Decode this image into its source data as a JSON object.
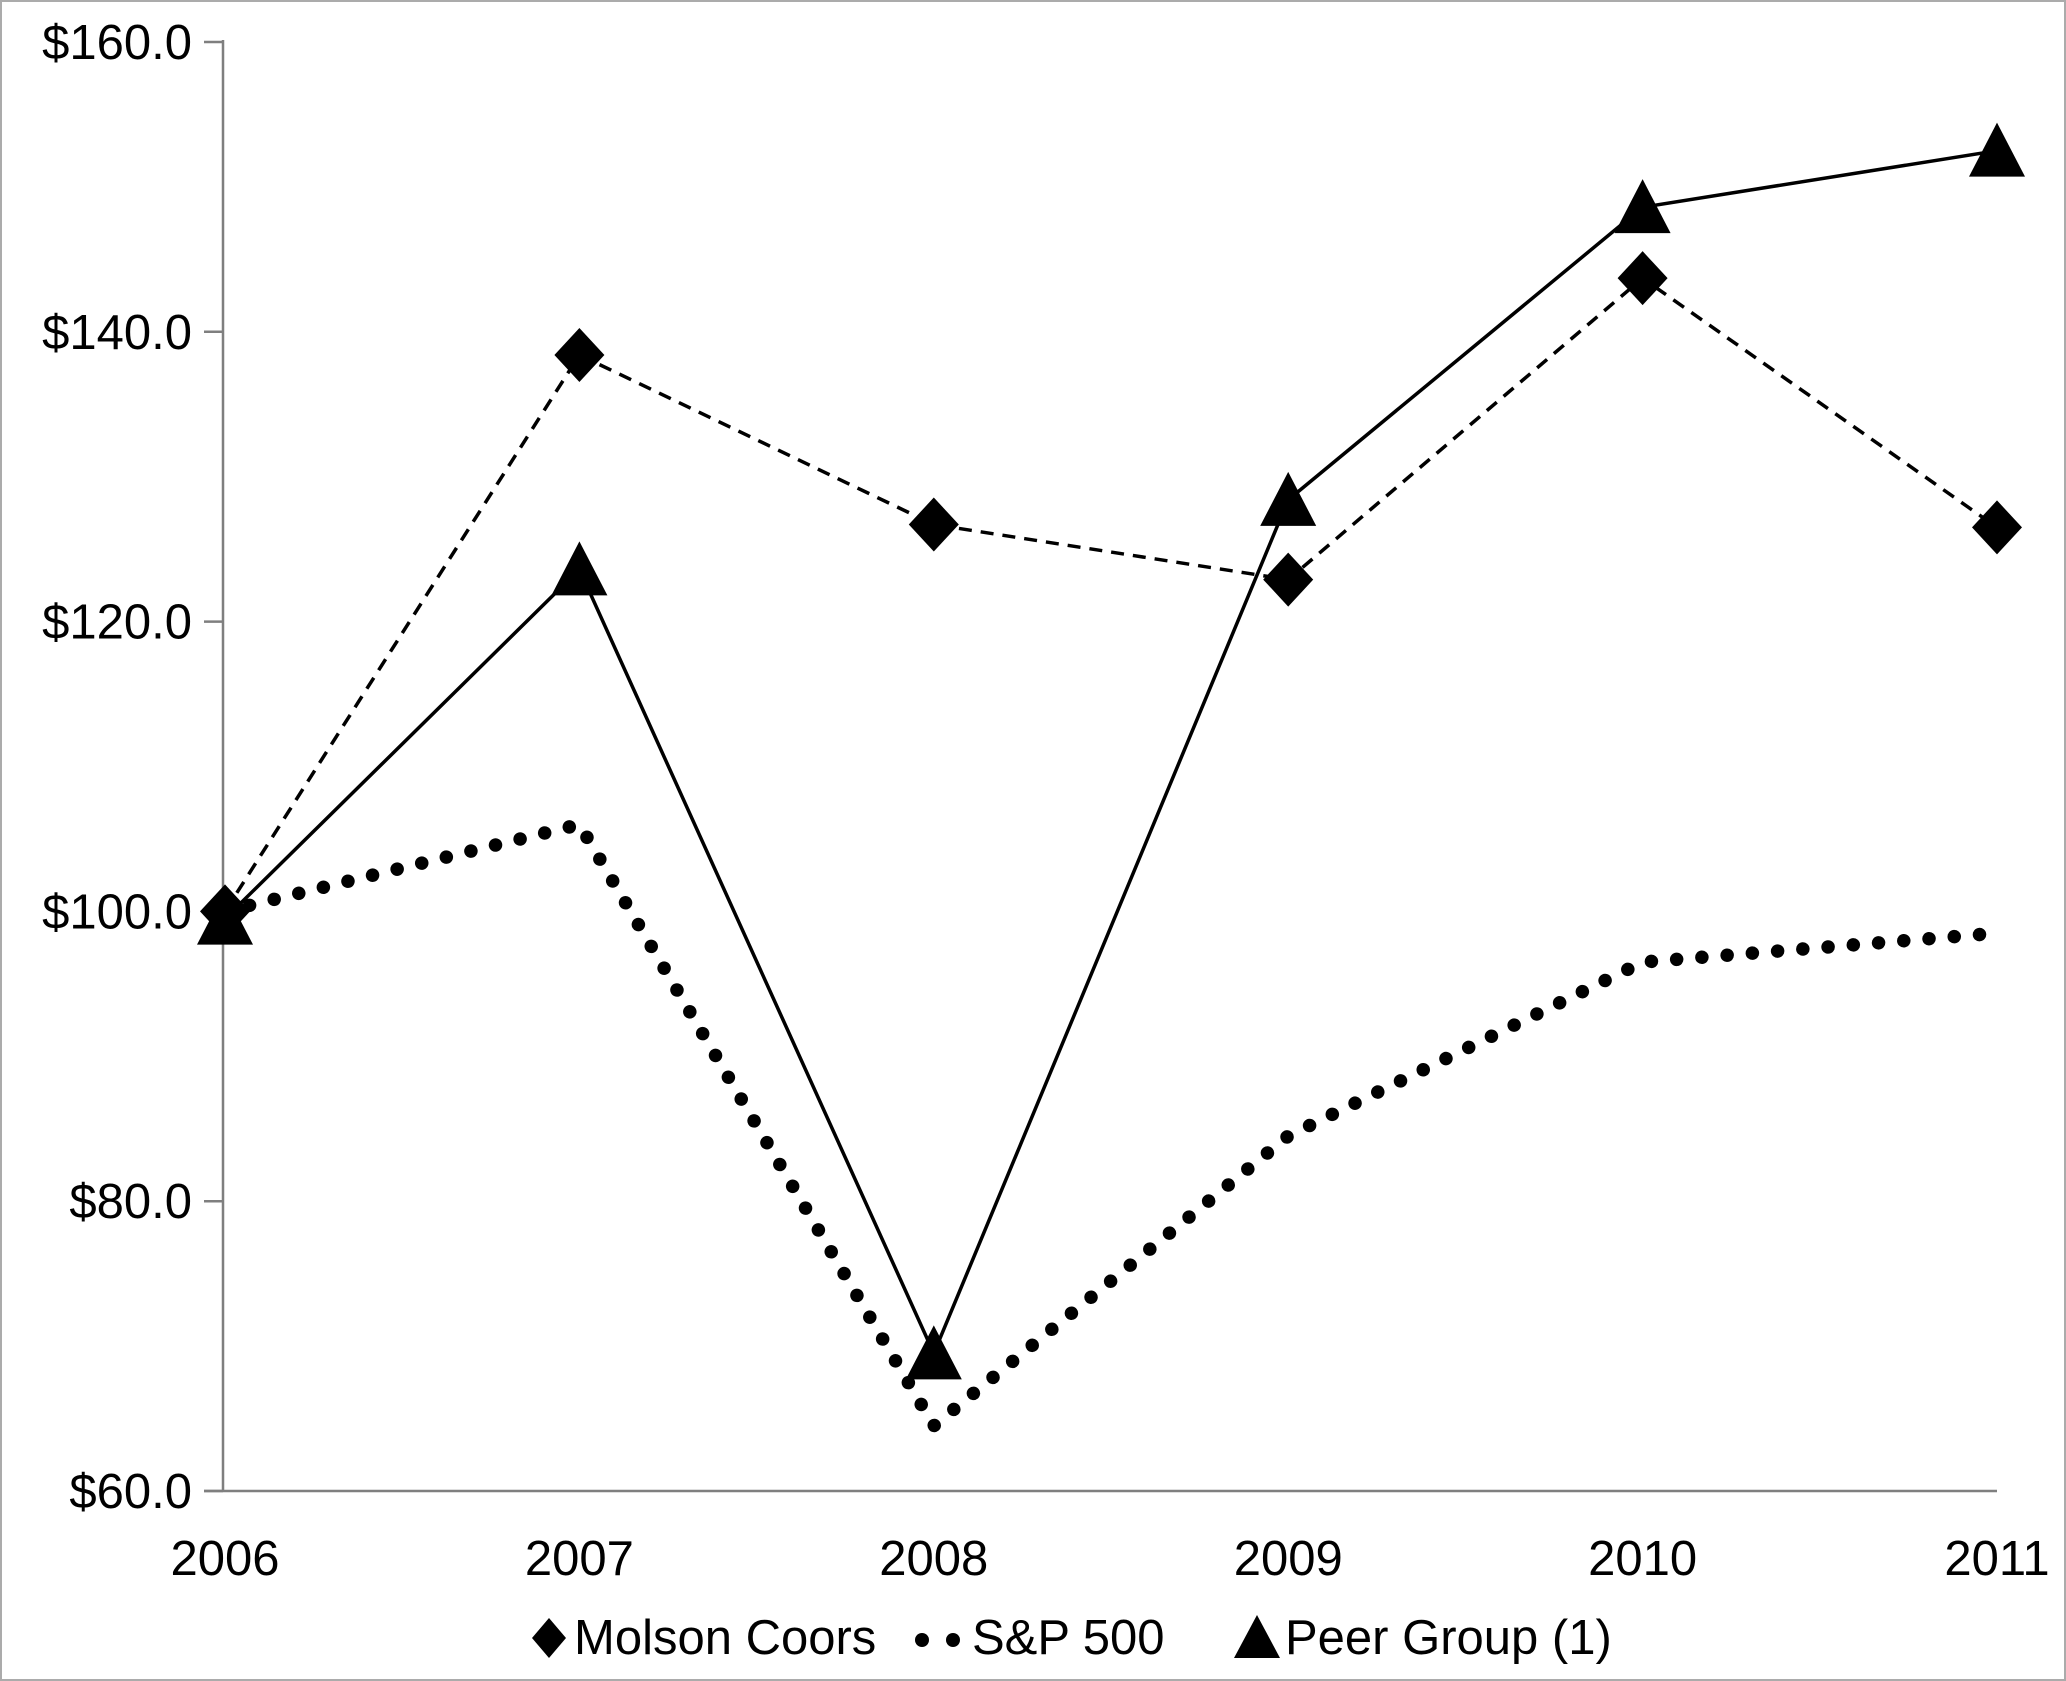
{
  "figure": {
    "background": "#ffffff",
    "border_color": "#ababab",
    "axis_color": "#7f7f7f",
    "series_color": "#000000",
    "text_color": "#000000"
  },
  "chart_data": {
    "type": "line",
    "title": "",
    "xlabel": "",
    "ylabel": "",
    "grid": false,
    "legend_position": "bottom-center",
    "x": [
      2006,
      2007,
      2008,
      2009,
      2010,
      2011
    ],
    "x_tick_labels": [
      "2006",
      "2007",
      "2008",
      "2009",
      "2010",
      "2011"
    ],
    "y_tick_values": [
      160,
      140,
      120,
      100,
      80,
      60
    ],
    "y_tick_labels": [
      "$160.0",
      "$140.0",
      "$120.0",
      "$100.0",
      "$80.0",
      "$60.0"
    ],
    "ylim": [
      60,
      160
    ],
    "series": [
      {
        "name": "Molson Coors",
        "line_style": "dashed",
        "marker": "diamond",
        "color": "#000000",
        "values": [
          100.0,
          138.4,
          126.7,
          122.9,
          143.7,
          126.5
        ]
      },
      {
        "name": "S&P 500",
        "line_style": "dotted",
        "marker": "none",
        "color": "#000000",
        "values": [
          100.0,
          106.0,
          64.5,
          84.5,
          96.5,
          98.5
        ]
      },
      {
        "name": "Peer Group (1)",
        "line_style": "solid",
        "marker": "triangle",
        "color": "#000000",
        "values": [
          99.5,
          123.6,
          69.5,
          128.4,
          148.6,
          152.5
        ]
      }
    ]
  }
}
